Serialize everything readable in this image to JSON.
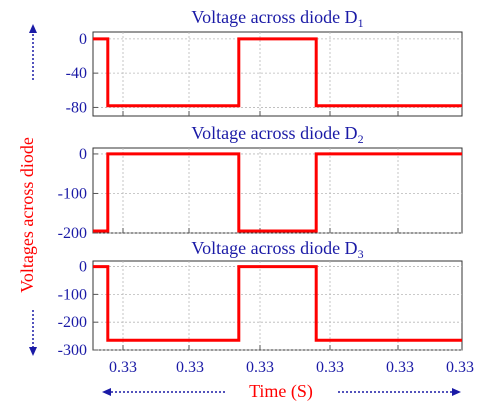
{
  "xlabel": "Time (S)",
  "ylabel": "Voltages across diode",
  "x_tick_labels": [
    "0.33",
    "0.33",
    "0.33",
    "0.33",
    "0.33",
    "0.33"
  ],
  "colors": {
    "trace": "#ff0000",
    "text": "#1a1aa6",
    "axis_label": "#ff0000"
  },
  "chart_data": [
    {
      "type": "line",
      "title": "Voltage across diode D",
      "title_subscript": "1",
      "yticks": [
        "0",
        "-40",
        "-80"
      ],
      "ylim": [
        -90,
        8
      ],
      "series": [
        {
          "values": [
            [
              0.0,
              0
            ],
            [
              0.04,
              0
            ],
            [
              0.04,
              -78
            ],
            [
              0.395,
              -78
            ],
            [
              0.395,
              0
            ],
            [
              0.605,
              0
            ],
            [
              0.605,
              -78
            ],
            [
              1.0,
              -78
            ]
          ]
        }
      ]
    },
    {
      "type": "line",
      "title": "Voltage across diode D",
      "title_subscript": "2",
      "yticks": [
        "0",
        "-100",
        "-200"
      ],
      "ylim": [
        -200,
        15
      ],
      "series": [
        {
          "values": [
            [
              0.0,
              -195
            ],
            [
              0.04,
              -195
            ],
            [
              0.04,
              0
            ],
            [
              0.395,
              0
            ],
            [
              0.395,
              -195
            ],
            [
              0.605,
              -195
            ],
            [
              0.605,
              0
            ],
            [
              1.0,
              0
            ]
          ]
        }
      ]
    },
    {
      "type": "line",
      "title": "Voltage across diode D",
      "title_subscript": "3",
      "yticks": [
        "0",
        "-100",
        "-200",
        "-300"
      ],
      "ylim": [
        -300,
        20
      ],
      "series": [
        {
          "values": [
            [
              0.0,
              0
            ],
            [
              0.04,
              0
            ],
            [
              0.04,
              -265
            ],
            [
              0.395,
              -265
            ],
            [
              0.395,
              0
            ],
            [
              0.605,
              0
            ],
            [
              0.605,
              -265
            ],
            [
              1.0,
              -265
            ]
          ]
        }
      ]
    }
  ]
}
